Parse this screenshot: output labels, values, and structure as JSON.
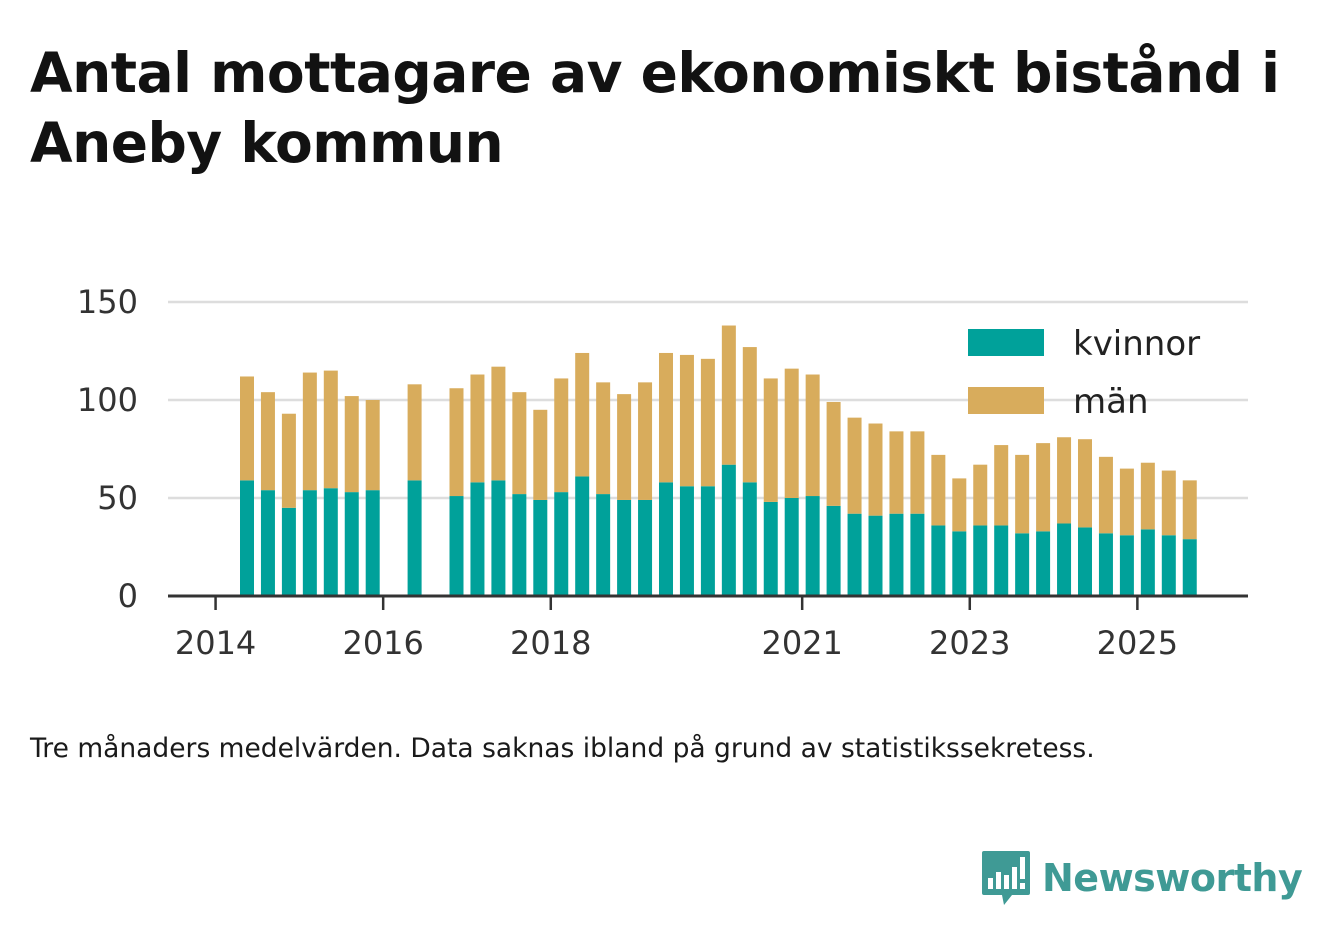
{
  "title": "Antal mottagare av ekonomiskt bistånd i Aneby kommun",
  "note": "Tre månaders medelvärden. Data saknas ibland på grund av statistikssekretess.",
  "brand": "Newsworthy",
  "colors": {
    "kvinnor": "#00a19a",
    "man": "#d8ac5c",
    "grid": "#dddddd",
    "axis": "#333333"
  },
  "chart_data": {
    "type": "bar",
    "stacked": true,
    "legend_position": "top-right",
    "grid": true,
    "ylim": [
      0,
      150
    ],
    "yticks": [
      0,
      50,
      100,
      150
    ],
    "xticks": [
      "2014",
      "2016",
      "2018",
      "2021",
      "2023",
      "2025"
    ],
    "categories": [
      "2014-Q2",
      "2014-Q3",
      "2014-Q4",
      "2015-Q1",
      "2015-Q2",
      "2015-Q3",
      "2015-Q4",
      "2016-Q1",
      "2016-Q2",
      "2016-Q3",
      "2016-Q4",
      "2017-Q1",
      "2017-Q2",
      "2017-Q3",
      "2017-Q4",
      "2018-Q1",
      "2018-Q2",
      "2018-Q3",
      "2018-Q4",
      "2019-Q1",
      "2019-Q2",
      "2019-Q3",
      "2019-Q4",
      "2020-Q1",
      "2020-Q2",
      "2020-Q3",
      "2020-Q4",
      "2021-Q1",
      "2021-Q2",
      "2021-Q3",
      "2021-Q4",
      "2022-Q1",
      "2022-Q2",
      "2022-Q3",
      "2022-Q4",
      "2023-Q1",
      "2023-Q2",
      "2023-Q3",
      "2023-Q4",
      "2024-Q1",
      "2024-Q2",
      "2024-Q3",
      "2024-Q4",
      "2025-Q1",
      "2025-Q2",
      "2025-Q3"
    ],
    "series": [
      {
        "name": "kvinnor",
        "values": [
          59,
          54,
          45,
          54,
          55,
          53,
          54,
          null,
          59,
          null,
          51,
          58,
          59,
          52,
          49,
          53,
          61,
          52,
          49,
          49,
          58,
          56,
          56,
          67,
          58,
          48,
          50,
          51,
          46,
          42,
          41,
          42,
          42,
          36,
          33,
          36,
          36,
          32,
          33,
          37,
          35,
          32,
          31,
          34,
          31,
          29
        ]
      },
      {
        "name": "män",
        "values": [
          53,
          50,
          48,
          60,
          60,
          49,
          46,
          null,
          49,
          null,
          55,
          55,
          58,
          52,
          46,
          58,
          63,
          57,
          54,
          60,
          66,
          67,
          65,
          71,
          69,
          63,
          66,
          62,
          53,
          49,
          47,
          42,
          42,
          36,
          27,
          31,
          41,
          40,
          45,
          44,
          45,
          39,
          34,
          34,
          33,
          30
        ]
      }
    ]
  }
}
